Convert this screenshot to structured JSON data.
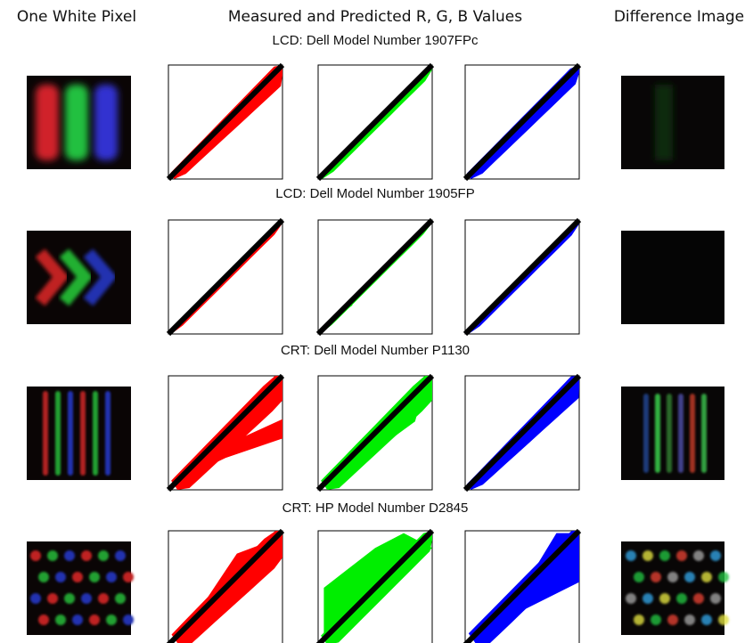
{
  "header": {
    "left": "One White Pixel",
    "center": "Measured and Predicted R, G, B Values",
    "right": "Difference Image"
  },
  "rows": [
    {
      "title": "LCD: Dell Model Number 1907FPc"
    },
    {
      "title": "LCD: Dell Model Number 1905FP"
    },
    {
      "title": "CRT: Dell Model Number P1130"
    },
    {
      "title": "CRT: HP Model Number D2845"
    }
  ]
}
